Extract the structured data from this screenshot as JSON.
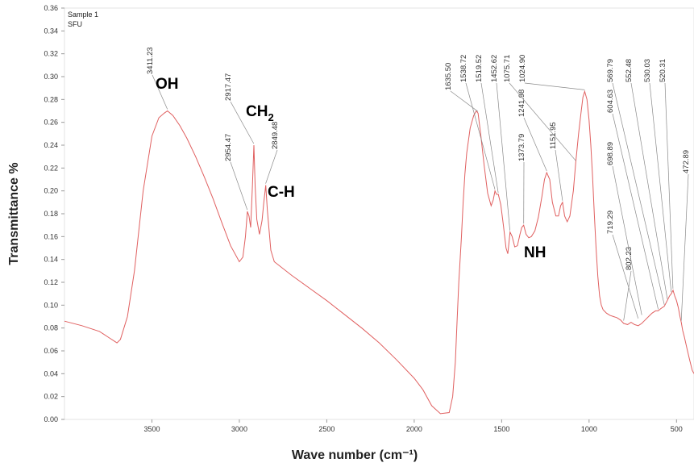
{
  "chart_data": {
    "type": "line",
    "legend_lines": [
      "Sample 1",
      "SFU"
    ],
    "xlabel": "Wave number",
    "xlabel_unit": "(cm⁻¹)",
    "ylabel": "Transmittance %",
    "xlim": [
      4000,
      400
    ],
    "ylim": [
      0,
      0.36
    ],
    "x_ticks": [
      3500,
      3000,
      2500,
      2000,
      1500,
      1000,
      500
    ],
    "y_ticks": [
      0.0,
      0.02,
      0.04,
      0.06,
      0.08,
      0.1,
      0.12,
      0.14,
      0.16,
      0.18,
      0.2,
      0.22,
      0.24,
      0.26,
      0.28,
      0.3,
      0.32,
      0.34,
      0.36
    ],
    "grid": false,
    "line_color": "#e06060",
    "series": [
      {
        "x": [
          4000,
          3900,
          3800,
          3750,
          3700,
          3680,
          3640,
          3600,
          3550,
          3500,
          3460,
          3430,
          3411,
          3380,
          3340,
          3300,
          3250,
          3200,
          3150,
          3100,
          3050,
          3000,
          2980,
          2965,
          2954,
          2945,
          2935,
          2925,
          2917,
          2910,
          2900,
          2885,
          2870,
          2860,
          2849,
          2840,
          2820,
          2800,
          2700,
          2600,
          2500,
          2400,
          2300,
          2200,
          2100,
          2000,
          1950,
          1900,
          1850,
          1800,
          1780,
          1765,
          1755,
          1745,
          1730,
          1720,
          1710,
          1700,
          1680,
          1660,
          1645,
          1635,
          1620,
          1600,
          1580,
          1560,
          1548,
          1538,
          1530,
          1519,
          1505,
          1490,
          1475,
          1465,
          1452,
          1440,
          1425,
          1410,
          1395,
          1385,
          1374,
          1360,
          1345,
          1330,
          1310,
          1290,
          1270,
          1255,
          1242,
          1225,
          1210,
          1190,
          1175,
          1163,
          1152,
          1140,
          1125,
          1110,
          1090,
          1076,
          1060,
          1045,
          1035,
          1025,
          1012,
          1000,
          990,
          980,
          970,
          960,
          950,
          940,
          930,
          920,
          900,
          880,
          860,
          840,
          820,
          802,
          780,
          760,
          740,
          719,
          699,
          680,
          660,
          640,
          620,
          605,
          590,
          570,
          553,
          540,
          530,
          520,
          510,
          500,
          490,
          480,
          473,
          465,
          455,
          440,
          425,
          410,
          400
        ],
        "y": [
          0.086,
          0.082,
          0.077,
          0.072,
          0.067,
          0.07,
          0.09,
          0.13,
          0.2,
          0.248,
          0.264,
          0.268,
          0.27,
          0.266,
          0.257,
          0.246,
          0.23,
          0.212,
          0.193,
          0.172,
          0.152,
          0.138,
          0.142,
          0.16,
          0.182,
          0.178,
          0.168,
          0.205,
          0.24,
          0.205,
          0.175,
          0.162,
          0.174,
          0.19,
          0.205,
          0.183,
          0.148,
          0.138,
          0.126,
          0.115,
          0.104,
          0.092,
          0.08,
          0.067,
          0.052,
          0.036,
          0.026,
          0.012,
          0.005,
          0.006,
          0.02,
          0.05,
          0.085,
          0.12,
          0.16,
          0.19,
          0.215,
          0.233,
          0.255,
          0.266,
          0.27,
          0.268,
          0.25,
          0.222,
          0.198,
          0.187,
          0.192,
          0.2,
          0.197,
          0.197,
          0.188,
          0.17,
          0.15,
          0.145,
          0.164,
          0.16,
          0.151,
          0.152,
          0.162,
          0.168,
          0.17,
          0.162,
          0.159,
          0.16,
          0.165,
          0.177,
          0.195,
          0.21,
          0.216,
          0.21,
          0.19,
          0.178,
          0.178,
          0.187,
          0.19,
          0.178,
          0.173,
          0.178,
          0.2,
          0.225,
          0.25,
          0.27,
          0.282,
          0.287,
          0.28,
          0.262,
          0.24,
          0.212,
          0.18,
          0.15,
          0.125,
          0.108,
          0.1,
          0.096,
          0.093,
          0.091,
          0.09,
          0.089,
          0.087,
          0.084,
          0.083,
          0.085,
          0.083,
          0.082,
          0.084,
          0.087,
          0.09,
          0.093,
          0.095,
          0.095,
          0.097,
          0.099,
          0.104,
          0.108,
          0.11,
          0.113,
          0.108,
          0.104,
          0.098,
          0.09,
          0.085,
          0.078,
          0.072,
          0.062,
          0.052,
          0.043,
          0.04
        ]
      }
    ],
    "peak_labels": [
      {
        "text": "3411.23",
        "x": 3411.23,
        "y": 0.27
      },
      {
        "text": "2954.47",
        "x": 2954.47,
        "y": 0.182
      },
      {
        "text": "2917.47",
        "x": 2917.47,
        "y": 0.24
      },
      {
        "text": "2849.48",
        "x": 2849.48,
        "y": 0.205
      },
      {
        "text": "1635.50",
        "x": 1635.5,
        "y": 0.268
      },
      {
        "text": "1538.72",
        "x": 1538.72,
        "y": 0.2
      },
      {
        "text": "1519.52",
        "x": 1519.52,
        "y": 0.197
      },
      {
        "text": "1452.62",
        "x": 1452.62,
        "y": 0.164
      },
      {
        "text": "1373.79",
        "x": 1373.79,
        "y": 0.17
      },
      {
        "text": "1241.98",
        "x": 1241.98,
        "y": 0.216
      },
      {
        "text": "1151.95",
        "x": 1151.95,
        "y": 0.19
      },
      {
        "text": "1075.71",
        "x": 1075.71,
        "y": 0.225
      },
      {
        "text": "1024.90",
        "x": 1024.9,
        "y": 0.287
      },
      {
        "text": "802.23",
        "x": 802.23,
        "y": 0.085
      },
      {
        "text": "719.29",
        "x": 719.29,
        "y": 0.087
      },
      {
        "text": "698.89",
        "x": 698.89,
        "y": 0.09
      },
      {
        "text": "604.63",
        "x": 604.63,
        "y": 0.095
      },
      {
        "text": "569.79",
        "x": 569.79,
        "y": 0.099
      },
      {
        "text": "552.48",
        "x": 552.48,
        "y": 0.104
      },
      {
        "text": "530.03",
        "x": 530.03,
        "y": 0.11
      },
      {
        "text": "520.31",
        "x": 520.31,
        "y": 0.113
      },
      {
        "text": "472.89",
        "x": 472.89,
        "y": 0.085
      }
    ],
    "group_annotations": [
      {
        "text": "OH",
        "sub": ""
      },
      {
        "text": "CH",
        "sub": "2"
      },
      {
        "text": "C-H",
        "sub": ""
      },
      {
        "text": "NH",
        "sub": ""
      }
    ]
  }
}
